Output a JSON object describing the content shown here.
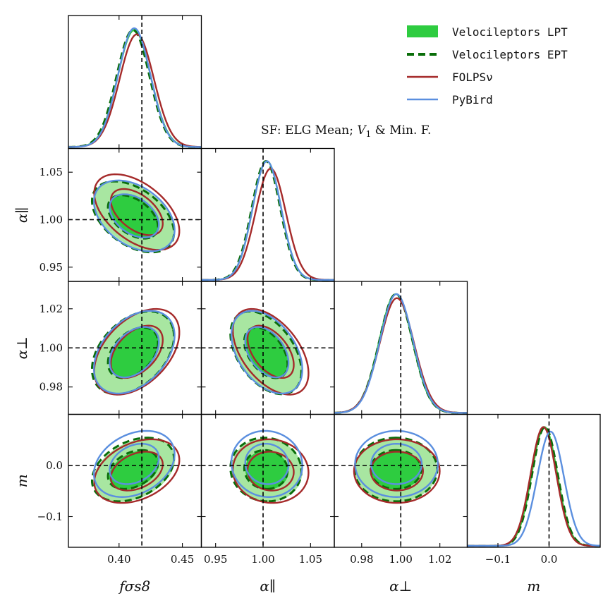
{
  "chart_data": {
    "type": "corner",
    "parameters": [
      {
        "id": "fs8",
        "label": "fσs8",
        "range": [
          0.36,
          0.465
        ],
        "ticks": [
          0.4,
          0.45
        ],
        "tick_labels": [
          "0.40",
          "0.45"
        ],
        "truth": 0.418
      },
      {
        "id": "apar",
        "label": "α∥",
        "range": [
          0.935,
          1.075
        ],
        "ticks": [
          0.95,
          1.0,
          1.05
        ],
        "tick_labels": [
          "0.95",
          "1.00",
          "1.05"
        ],
        "truth": 1.0
      },
      {
        "id": "aperp",
        "label": "α⊥",
        "range": [
          0.966,
          1.034
        ],
        "ticks": [
          0.98,
          1.0,
          1.02
        ],
        "tick_labels": [
          "0.98",
          "1.00",
          "1.02"
        ],
        "truth": 1.0
      },
      {
        "id": "m",
        "label": "m",
        "range": [
          -0.16,
          0.1
        ],
        "ticks": [
          -0.1,
          0.0
        ],
        "tick_labels": [
          "−0.1",
          "0.0"
        ],
        "truth": 0.0
      }
    ],
    "series": [
      {
        "name": "Velocileptors LPT",
        "color": "#2ecc40",
        "fill_inner": "#2ecc40",
        "fill_outer": "#a8e6a1",
        "style": "filled",
        "marginals": [
          {
            "mean": 0.412,
            "sigma": 0.013
          },
          {
            "mean": 1.004,
            "sigma": 0.015
          },
          {
            "mean": 0.9975,
            "sigma": 0.0085
          },
          {
            "mean": -0.009,
            "sigma": 0.025
          }
        ],
        "correlations": {
          "fs8_apar": -0.45,
          "fs8_aperp": 0.4,
          "apar_aperp": -0.45,
          "fs8_m": 0.35,
          "apar_m": -0.05,
          "aperp_m": 0.0
        }
      },
      {
        "name": "Velocileptors EPT",
        "color": "#0a6e0a",
        "style": "dashed",
        "marginals": [
          {
            "mean": 0.411,
            "sigma": 0.013
          },
          {
            "mean": 1.003,
            "sigma": 0.015
          },
          {
            "mean": 0.9975,
            "sigma": 0.0085
          },
          {
            "mean": -0.008,
            "sigma": 0.025
          }
        ],
        "correlations": {
          "fs8_apar": -0.45,
          "fs8_aperp": 0.4,
          "apar_aperp": -0.45,
          "fs8_m": 0.35,
          "apar_m": -0.05,
          "aperp_m": 0.0
        }
      },
      {
        "name": "FOLPSν",
        "color": "#a52a2a",
        "style": "solid",
        "marginals": [
          {
            "mean": 0.414,
            "sigma": 0.0135
          },
          {
            "mean": 1.008,
            "sigma": 0.016
          },
          {
            "mean": 0.998,
            "sigma": 0.0088
          },
          {
            "mean": -0.011,
            "sigma": 0.025
          }
        ],
        "correlations": {
          "fs8_apar": -0.5,
          "fs8_aperp": 0.45,
          "apar_aperp": -0.5,
          "fs8_m": 0.35,
          "apar_m": -0.05,
          "aperp_m": 0.0
        }
      },
      {
        "name": "PyBird",
        "color": "#5b8fdf",
        "style": "solid",
        "marginals": [
          {
            "mean": 0.412,
            "sigma": 0.0128
          },
          {
            "mean": 1.004,
            "sigma": 0.015
          },
          {
            "mean": 0.9978,
            "sigma": 0.0085
          },
          {
            "mean": 0.003,
            "sigma": 0.026
          }
        ],
        "correlations": {
          "fs8_apar": -0.4,
          "fs8_aperp": 0.4,
          "apar_aperp": -0.42,
          "fs8_m": 0.3,
          "apar_m": -0.05,
          "aperp_m": 0.0
        }
      }
    ],
    "legend": {
      "position": "top-right",
      "entries": [
        "Velocileptors LPT",
        "Velocileptors EPT",
        "FOLPSν",
        "PyBird"
      ]
    },
    "annotation": "SF: ELG Mean; V1 & Min. F.",
    "annotation_parts": {
      "prefix": "SF: ELG Mean; ",
      "var": "V",
      "sub": "1",
      "suffix": " & Min. F."
    },
    "truth_line_style": "dashed-black"
  }
}
